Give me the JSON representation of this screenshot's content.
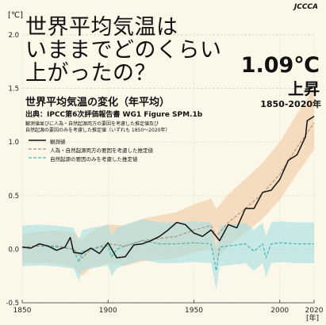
{
  "header": {
    "headline_line1": "世界平均気温は",
    "headline_line2": "いままでどのくらい",
    "headline_line3": "上がったの？",
    "increase_value": "1.09℃",
    "increase_label": "上昇",
    "increase_period": "1850-2020年",
    "logo": "JCCCA"
  },
  "chart_data": {
    "type": "line",
    "title": "世界平均気温の変化（年平均）",
    "source": "出典：IPCC第6次評価報告書 WG1 Figure SPM.1b",
    "note_line1": "観測値並びに人為・自然起源両方の要因を考慮した推定値及び",
    "note_line2": "自然起源の要因のみを考慮した推定値（いずれも 1850～2020年）",
    "ylabel": "[℃]",
    "xlabel": "[年]",
    "xlim": [
      1850,
      2020
    ],
    "ylim": [
      -0.5,
      2.0
    ],
    "yticks": [
      "-0.5",
      "0.0",
      "0.5",
      "1.0",
      "1.5",
      "2.0"
    ],
    "xticks": [
      "1850",
      "1900",
      "1950",
      "2000",
      "2020"
    ],
    "grid": true,
    "legend": "top-left",
    "colors": {
      "observed": "#111111",
      "human_natural": "#a89080",
      "human_natural_band": "#f4c9a2",
      "natural": "#47b8b9",
      "natural_band": "#a6dde2"
    },
    "series": [
      {
        "name": "観測値",
        "x": [
          1850,
          1855,
          1860,
          1865,
          1870,
          1875,
          1878,
          1880,
          1885,
          1890,
          1895,
          1900,
          1905,
          1910,
          1915,
          1920,
          1925,
          1930,
          1935,
          1940,
          1945,
          1950,
          1955,
          1960,
          1965,
          1970,
          1975,
          1980,
          1985,
          1990,
          1995,
          2000,
          2005,
          2010,
          2015,
          2016,
          2020
        ],
        "y": [
          0.02,
          0.01,
          0.05,
          0.03,
          -0.01,
          0.02,
          0.11,
          -0.03,
          -0.04,
          0.01,
          -0.04,
          0.06,
          -0.08,
          -0.07,
          0.04,
          0.05,
          0.08,
          0.12,
          0.18,
          0.25,
          0.23,
          0.15,
          0.12,
          0.18,
          0.08,
          0.23,
          0.2,
          0.38,
          0.38,
          0.53,
          0.55,
          0.65,
          0.83,
          0.88,
          1.05,
          1.2,
          1.24
        ]
      },
      {
        "name": "人為・自然起源両方の要因を考慮した推定値",
        "x": [
          1850,
          1860,
          1870,
          1880,
          1885,
          1890,
          1900,
          1910,
          1920,
          1930,
          1940,
          1950,
          1960,
          1963,
          1970,
          1980,
          1990,
          2000,
          2010,
          2020
        ],
        "y": [
          0.02,
          0.03,
          0.03,
          0.0,
          -0.08,
          0.0,
          0.05,
          0.03,
          0.08,
          0.1,
          0.12,
          0.18,
          0.22,
          0.12,
          0.25,
          0.38,
          0.52,
          0.7,
          0.95,
          1.18
        ]
      },
      {
        "name": "自然起源の要因のみを考慮した推定値",
        "x": [
          1850,
          1860,
          1870,
          1880,
          1883,
          1885,
          1890,
          1900,
          1902,
          1905,
          1910,
          1920,
          1930,
          1940,
          1950,
          1960,
          1963,
          1965,
          1970,
          1980,
          1985,
          1990,
          1992,
          1995,
          2000,
          2010,
          2020
        ],
        "y": [
          0.02,
          0.03,
          0.02,
          0.0,
          -0.12,
          -0.02,
          0.0,
          0.03,
          -0.07,
          0.0,
          0.03,
          0.08,
          0.05,
          0.05,
          0.06,
          0.05,
          -0.2,
          0.02,
          0.03,
          0.05,
          -0.02,
          0.05,
          -0.08,
          0.05,
          0.06,
          0.05,
          0.05
        ]
      }
    ]
  }
}
